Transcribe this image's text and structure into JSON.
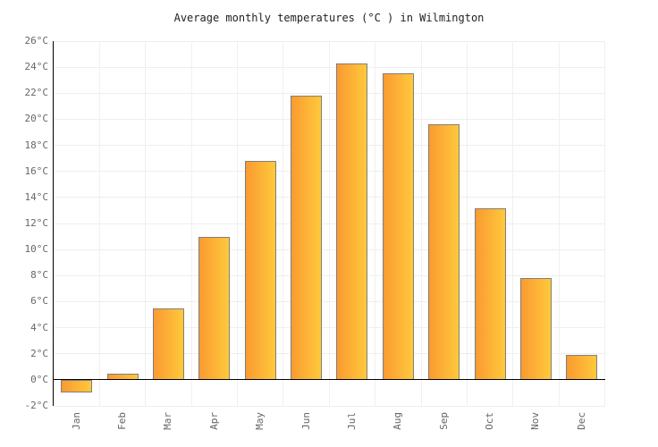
{
  "title": "Average monthly temperatures (°C ) in Wilmington",
  "chart_data": {
    "type": "bar",
    "title": "Average monthly temperatures (°C ) in Wilmington",
    "categories": [
      "Jan",
      "Feb",
      "Mar",
      "Apr",
      "May",
      "Jun",
      "Jul",
      "Aug",
      "Sep",
      "Oct",
      "Nov",
      "Dec"
    ],
    "values": [
      -1.0,
      0.5,
      5.5,
      11.0,
      16.8,
      21.8,
      24.3,
      23.5,
      19.6,
      13.2,
      7.8,
      1.9
    ],
    "xlabel": "",
    "ylabel": "",
    "ylim": [
      -2,
      26
    ],
    "y_tick_step": 2,
    "y_tick_unit": "°C",
    "grid": true,
    "legend": "none",
    "x_label_rotation": -90,
    "colors": {
      "bar_gradient_left": "#fa9a31",
      "bar_gradient_right": "#ffc93c",
      "bar_border": "#7f7f7f",
      "axis": "#000000",
      "h_gridline": "#eeeeee",
      "v_gridline": "#f0f0f0",
      "tick_label": "#666666",
      "title": "#222222",
      "background": "#ffffff"
    }
  }
}
